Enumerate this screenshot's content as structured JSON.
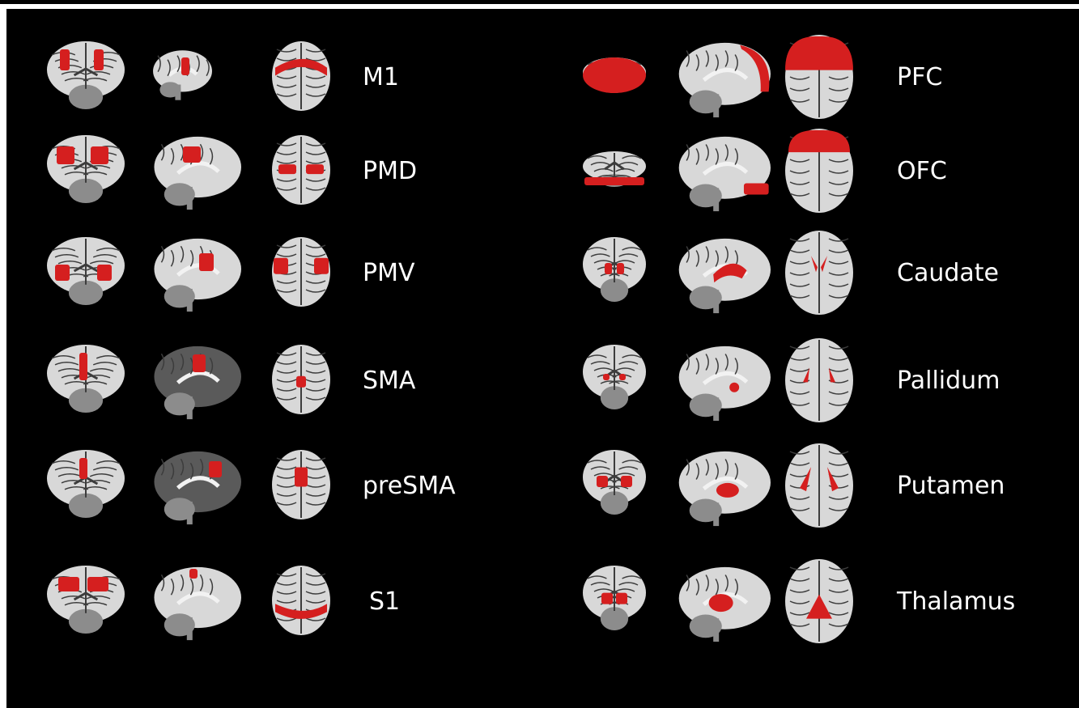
{
  "colors": {
    "background": "#000000",
    "roi": "#d51f1f",
    "brain_light": "#d8d8d8",
    "brain_mid": "#8c8c8c",
    "brain_dark": "#3c3c3c"
  },
  "views": [
    "coronal",
    "sagittal",
    "axial"
  ],
  "regions_left": [
    {
      "label": "M1"
    },
    {
      "label": "PMD"
    },
    {
      "label": "PMV"
    },
    {
      "label": "SMA"
    },
    {
      "label": "preSMA"
    },
    {
      "label": "S1"
    }
  ],
  "regions_right": [
    {
      "label": "PFC"
    },
    {
      "label": "OFC"
    },
    {
      "label": "Caudate"
    },
    {
      "label": "Pallidum"
    },
    {
      "label": "Putamen"
    },
    {
      "label": "Thalamus"
    }
  ]
}
